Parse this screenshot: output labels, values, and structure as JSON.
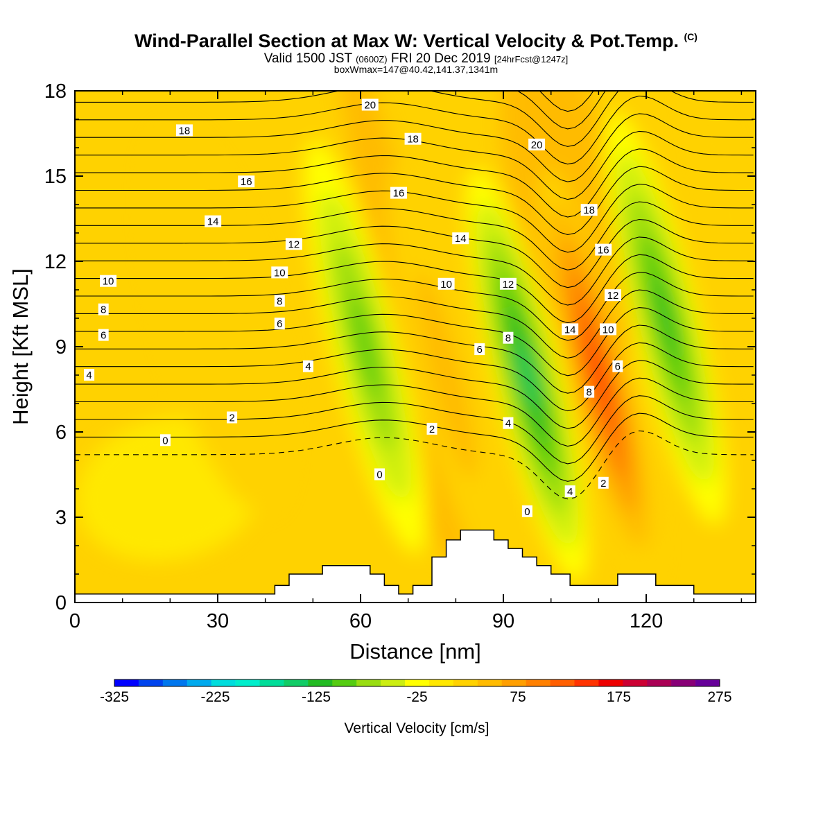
{
  "header": {
    "title": "Wind-Parallel Section at Max W: Vertical Velocity & Pot.Temp.",
    "copyright": "(C)",
    "valid_prefix": "Valid 1500 JST",
    "valid_z": "(0600Z)",
    "valid_date": "FRI 20 Dec 2019",
    "forecast": "[24hrFcst@1247z]",
    "box_info": "boxWmax=147@40.42,141.37,1341m"
  },
  "chart_data": {
    "type": "heatmap",
    "xlabel": "Distance [nm]",
    "ylabel": "Height [Kft MSL]",
    "xlim": [
      0,
      143
    ],
    "ylim": [
      0,
      18
    ],
    "x_ticks": [
      0,
      30,
      60,
      90,
      120
    ],
    "y_ticks": [
      0,
      3,
      6,
      9,
      12,
      15,
      18
    ],
    "colorbar": {
      "label": "Vertical Velocity [cm/s]",
      "ticks": [
        -325,
        -225,
        -125,
        -25,
        75,
        175,
        275
      ],
      "bins": [
        -325,
        -300,
        -275,
        -250,
        -225,
        -200,
        -175,
        -150,
        -125,
        -100,
        -75,
        -50,
        -25,
        0,
        25,
        50,
        75,
        100,
        125,
        150,
        175,
        200,
        225,
        250,
        275
      ],
      "colors": [
        "#0000ff",
        "#0044ee",
        "#0077ee",
        "#00aaee",
        "#00dddd",
        "#00eecc",
        "#00dd99",
        "#11cc66",
        "#22bb22",
        "#55cc11",
        "#99dd11",
        "#ccee11",
        "#ffff00",
        "#ffe800",
        "#ffd200",
        "#ffbb00",
        "#ff9f00",
        "#ff8000",
        "#ff5f00",
        "#ff3300",
        "#ee0000",
        "#cc0033",
        "#aa0055",
        "#880077",
        "#660099"
      ]
    },
    "updraft_cores": [
      {
        "x": 110,
        "height": 8.0,
        "w_max": 147
      },
      {
        "x": 78,
        "height": 8.0,
        "w_max": 40
      }
    ],
    "downdraft_cores": [
      {
        "x": 95,
        "height": 8.0,
        "w_min": -130
      },
      {
        "x": 124,
        "height": 10.0,
        "w_min": -115
      },
      {
        "x": 61,
        "height": 9.0,
        "w_min": -80
      }
    ],
    "terrain": [
      [
        0,
        0.3
      ],
      [
        42,
        0.3
      ],
      [
        42,
        0.6
      ],
      [
        45,
        0.6
      ],
      [
        45,
        1.0
      ],
      [
        52,
        1.0
      ],
      [
        52,
        1.3
      ],
      [
        62,
        1.3
      ],
      [
        62,
        1.0
      ],
      [
        65,
        1.0
      ],
      [
        65,
        0.6
      ],
      [
        68,
        0.6
      ],
      [
        68,
        0.3
      ],
      [
        71,
        0.3
      ],
      [
        71,
        0.6
      ],
      [
        75,
        0.6
      ],
      [
        75,
        1.6
      ],
      [
        78,
        1.6
      ],
      [
        78,
        2.2
      ],
      [
        81,
        2.2
      ],
      [
        81,
        2.55
      ],
      [
        88,
        2.55
      ],
      [
        88,
        2.2
      ],
      [
        91,
        2.2
      ],
      [
        91,
        1.9
      ],
      [
        94,
        1.9
      ],
      [
        94,
        1.6
      ],
      [
        97,
        1.6
      ],
      [
        97,
        1.3
      ],
      [
        100,
        1.3
      ],
      [
        100,
        1.0
      ],
      [
        104,
        1.0
      ],
      [
        104,
        0.6
      ],
      [
        114,
        0.6
      ],
      [
        114,
        1.0
      ],
      [
        122,
        1.0
      ],
      [
        122,
        0.6
      ],
      [
        130,
        0.6
      ],
      [
        130,
        0.3
      ],
      [
        143,
        0.3
      ]
    ],
    "potential_temperature_contours": {
      "unit": "C",
      "levels": [
        -1,
        0,
        1,
        2,
        3,
        4,
        5,
        6,
        7,
        8,
        9,
        10,
        11,
        12,
        13,
        14,
        15,
        16,
        17,
        18,
        19,
        20,
        21
      ],
      "labeled": [
        0,
        2,
        4,
        6,
        8,
        10,
        12,
        14,
        16,
        18,
        20
      ],
      "base_height_left": 5.2,
      "spacing_kft": 0.62
    },
    "contour_labels": [
      {
        "text": "20",
        "x": 62,
        "h": 17.5
      },
      {
        "text": "18",
        "x": 23,
        "h": 16.6
      },
      {
        "text": "18",
        "x": 71,
        "h": 16.3
      },
      {
        "text": "20",
        "x": 97,
        "h": 16.1
      },
      {
        "text": "16",
        "x": 36,
        "h": 14.8
      },
      {
        "text": "16",
        "x": 68,
        "h": 14.4
      },
      {
        "text": "18",
        "x": 108,
        "h": 13.8
      },
      {
        "text": "14",
        "x": 29,
        "h": 13.4
      },
      {
        "text": "14",
        "x": 81,
        "h": 12.8
      },
      {
        "text": "12",
        "x": 46,
        "h": 12.6
      },
      {
        "text": "16",
        "x": 111,
        "h": 12.4
      },
      {
        "text": "10",
        "x": 7,
        "h": 11.3
      },
      {
        "text": "10",
        "x": 43,
        "h": 11.6
      },
      {
        "text": "10",
        "x": 78,
        "h": 11.2
      },
      {
        "text": "12",
        "x": 91,
        "h": 11.2
      },
      {
        "text": "12",
        "x": 113,
        "h": 10.8
      },
      {
        "text": "8",
        "x": 6,
        "h": 10.3
      },
      {
        "text": "8",
        "x": 43,
        "h": 10.6
      },
      {
        "text": "14",
        "x": 104,
        "h": 9.6
      },
      {
        "text": "10",
        "x": 112,
        "h": 9.6
      },
      {
        "text": "6",
        "x": 6,
        "h": 9.4
      },
      {
        "text": "6",
        "x": 43,
        "h": 9.8
      },
      {
        "text": "8",
        "x": 91,
        "h": 9.3
      },
      {
        "text": "6",
        "x": 85,
        "h": 8.9
      },
      {
        "text": "6",
        "x": 114,
        "h": 8.3
      },
      {
        "text": "4",
        "x": 3,
        "h": 8.0
      },
      {
        "text": "4",
        "x": 49,
        "h": 8.3
      },
      {
        "text": "8",
        "x": 108,
        "h": 7.4
      },
      {
        "text": "4",
        "x": 91,
        "h": 6.3
      },
      {
        "text": "2",
        "x": 33,
        "h": 6.5
      },
      {
        "text": "2",
        "x": 75,
        "h": 6.1
      },
      {
        "text": "0",
        "x": 19,
        "h": 5.7
      },
      {
        "text": "0",
        "x": 64,
        "h": 4.5
      },
      {
        "text": "4",
        "x": 104,
        "h": 3.9
      },
      {
        "text": "2",
        "x": 111,
        "h": 4.2
      },
      {
        "text": "0",
        "x": 95,
        "h": 3.2
      }
    ]
  }
}
